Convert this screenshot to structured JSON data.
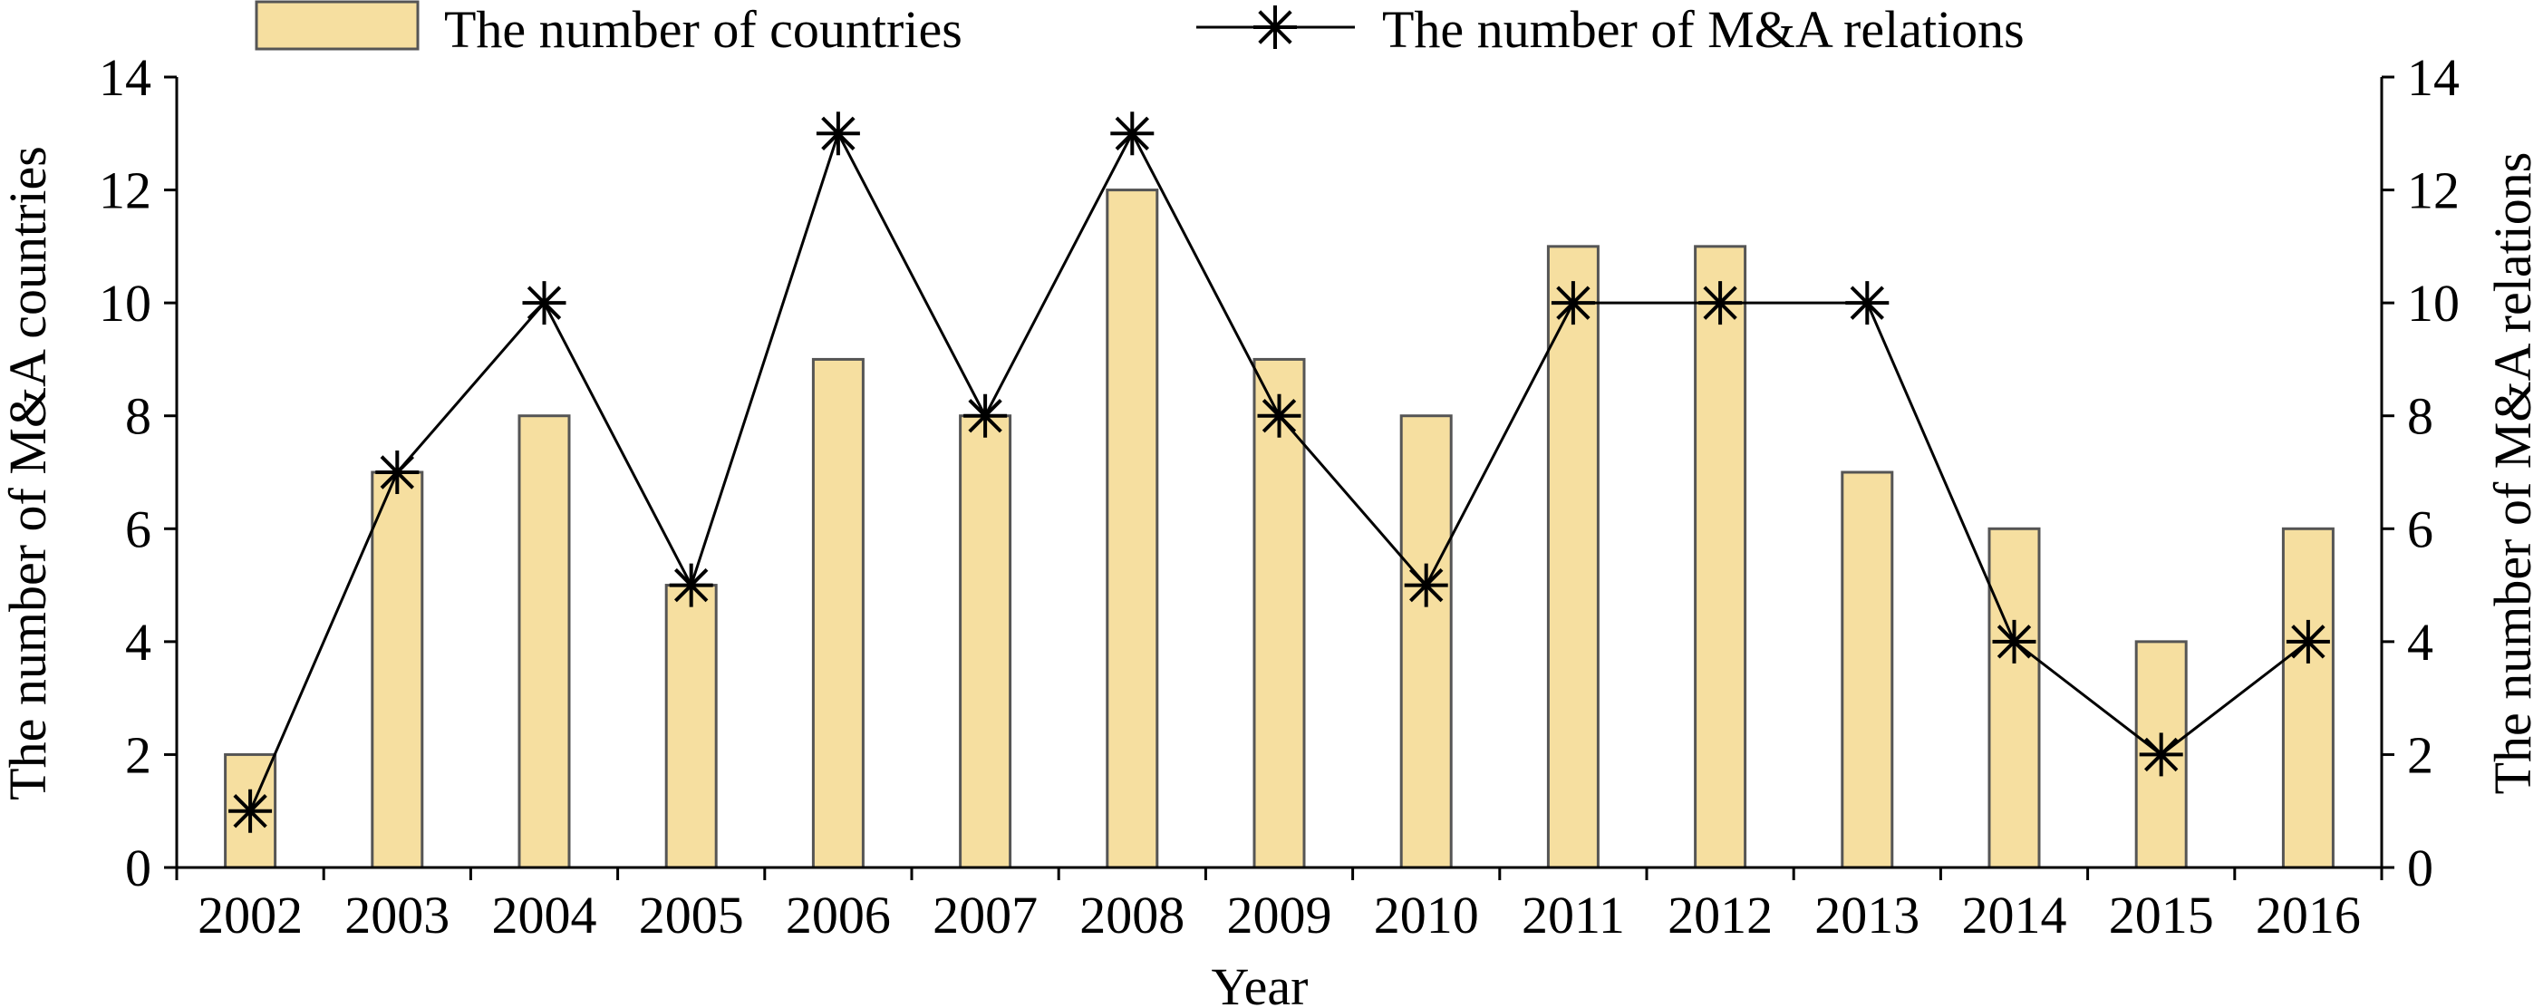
{
  "chart_data": {
    "type": "bar+line",
    "xlabel": "Year",
    "ylabel_left": "The number of M&A countries",
    "ylabel_right": "The number of M&A relations",
    "categories": [
      "2002",
      "2003",
      "2004",
      "2005",
      "2006",
      "2007",
      "2008",
      "2009",
      "2010",
      "2011",
      "2012",
      "2013",
      "2014",
      "2015",
      "2016"
    ],
    "ylim": [
      0,
      14
    ],
    "y_ticks": [
      "0",
      "2",
      "4",
      "6",
      "8",
      "10",
      "12",
      "14"
    ],
    "grid": false,
    "legend_position": "top",
    "series": [
      {
        "name": "The number of countries",
        "type": "bar",
        "axis": "left",
        "color": "#f6dfa0",
        "values": [
          2,
          7,
          8,
          5,
          9,
          8,
          12,
          9,
          8,
          11,
          11,
          7,
          6,
          4,
          6
        ]
      },
      {
        "name": "The number of M&A relations",
        "type": "line",
        "axis": "right",
        "color": "#000000",
        "marker": "asterisk",
        "values": [
          1,
          7,
          10,
          5,
          13,
          8,
          13,
          8,
          5,
          10,
          10,
          10,
          4,
          2,
          4
        ]
      }
    ]
  }
}
